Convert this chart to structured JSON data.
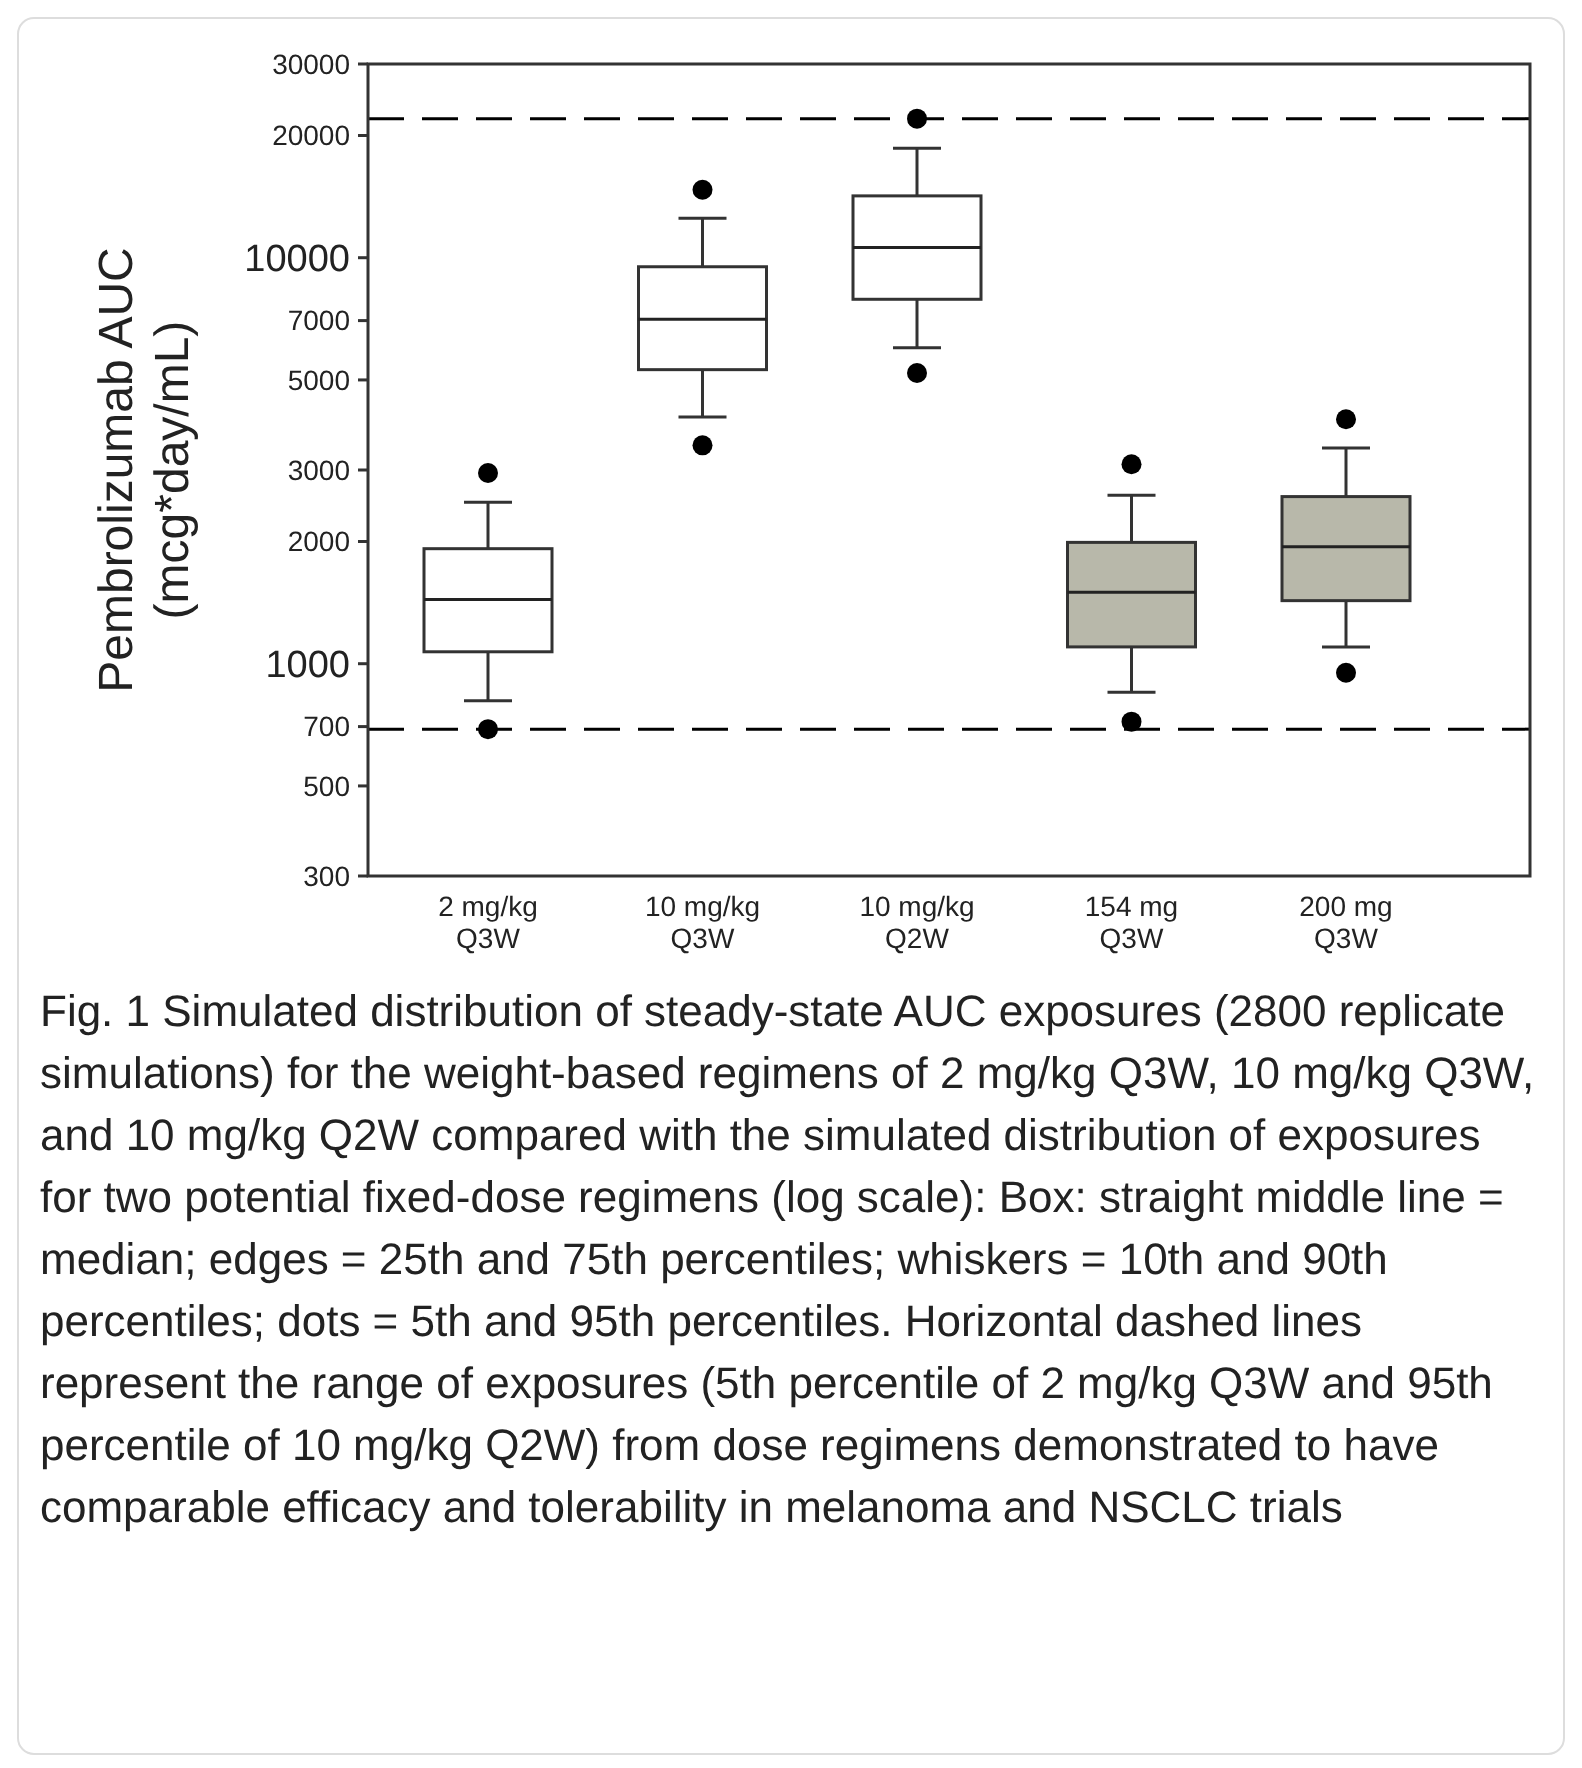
{
  "chart_data": {
    "type": "box",
    "ylabel": "Pembrolizumab AUC (mcg*day/mL)",
    "categories": [
      "2 mg/kg Q3W",
      "10 mg/kg Q3W",
      "10 mg/kg Q2W",
      "154 mg Q3W",
      "200 mg Q3W"
    ],
    "boxes": [
      {
        "low": 810,
        "q1": 1070,
        "median": 1440,
        "q3": 1920,
        "high": 2500,
        "outliers": [
          690,
          2950
        ]
      },
      {
        "low": 4050,
        "q1": 5300,
        "median": 7050,
        "q3": 9500,
        "high": 12500,
        "outliers": [
          3450,
          14700
        ]
      },
      {
        "low": 6000,
        "q1": 7900,
        "median": 10600,
        "q3": 14200,
        "high": 18600,
        "outliers": [
          5200,
          22000
        ]
      },
      {
        "low": 850,
        "q1": 1100,
        "median": 1500,
        "q3": 1990,
        "high": 2600,
        "outliers": [
          720,
          3100
        ]
      },
      {
        "low": 1100,
        "q1": 1430,
        "median": 1940,
        "q3": 2580,
        "high": 3400,
        "outliers": [
          950,
          4000
        ]
      }
    ],
    "colors": [
      "#ffffff",
      "#ffffff",
      "#ffffff",
      "#b8b8aa",
      "#b8b8aa"
    ],
    "log": true,
    "ylim": [
      300,
      30000
    ],
    "yticks": [
      300,
      500,
      700,
      1000,
      2000,
      3000,
      5000,
      7000,
      10000,
      20000,
      30000
    ],
    "grid": false,
    "ref_lines": [
      {
        "axis": "y",
        "value": 22000,
        "color": "#000000",
        "line_style": "dashed"
      },
      {
        "axis": "y",
        "value": 690,
        "color": "#000000",
        "line_style": "dashed"
      }
    ],
    "annotations": [
      "Fig. 1 Simulated distribution of steady-state AUC exposures (2800 replicate simulations) for the weight-based regimens of 2 mg/kg Q3W, 10 mg/kg Q3W, and 10 mg/kg Q2W compared with the simulated distribution of exposures for two potential fixed-dose regimens (log scale): Box: straight middle line = median; edges = 25th and 75th percentiles; whiskers = 10th and 90th percentiles; dots = 5th and 95th percentiles. Horizontal dashed lines represent the range of exposures (5th percentile of 2 mg/kg Q3W and 95th percentile of 10 mg/kg Q2W) from dose regimens demonstrated to have comparable efficacy and tolerability in melanoma and NSCLC trials"
    ]
  }
}
